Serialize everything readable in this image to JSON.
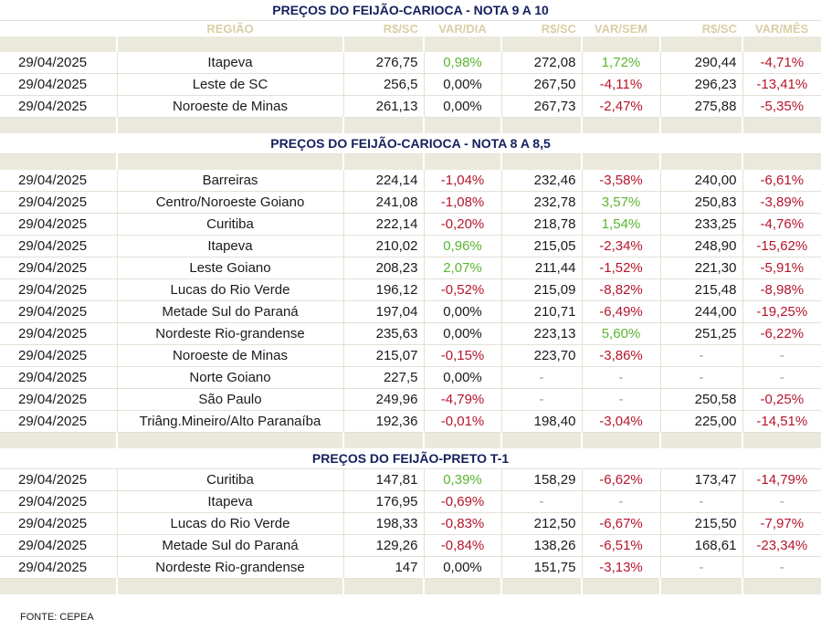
{
  "section1": {
    "title": "PREÇOS DO FEIJÃO-CARIOCA - NOTA 9 A 10",
    "header": [
      "",
      "REGIÃO",
      "R$/SC",
      "VAR/DIA",
      "R$/SC",
      "VAR/SEM",
      "R$/SC",
      "VAR/MÊS"
    ],
    "rows": [
      [
        "29/04/2025",
        "Itapeva",
        "276,75",
        "0,98%",
        "272,08",
        "1,72%",
        "290,44",
        "-4,71%"
      ],
      [
        "29/04/2025",
        "Leste de SC",
        "256,5",
        "0,00%",
        "267,50",
        "-4,11%",
        "296,23",
        "-13,41%"
      ],
      [
        "29/04/2025",
        "Noroeste de Minas",
        "261,13",
        "0,00%",
        "267,73",
        "-2,47%",
        "275,88",
        "-5,35%"
      ]
    ]
  },
  "section2": {
    "title": "PREÇOS DO FEIJÃO-CARIOCA - NOTA 8 A 8,5",
    "rows": [
      [
        "29/04/2025",
        "Barreiras",
        "224,14",
        "-1,04%",
        "232,46",
        "-3,58%",
        "240,00",
        "-6,61%"
      ],
      [
        "29/04/2025",
        "Centro/Noroeste Goiano",
        "241,08",
        "-1,08%",
        "232,78",
        "3,57%",
        "250,83",
        "-3,89%"
      ],
      [
        "29/04/2025",
        "Curitiba",
        "222,14",
        "-0,20%",
        "218,78",
        "1,54%",
        "233,25",
        "-4,76%"
      ],
      [
        "29/04/2025",
        "Itapeva",
        "210,02",
        "0,96%",
        "215,05",
        "-2,34%",
        "248,90",
        "-15,62%"
      ],
      [
        "29/04/2025",
        "Leste Goiano",
        "208,23",
        "2,07%",
        "211,44",
        "-1,52%",
        "221,30",
        "-5,91%"
      ],
      [
        "29/04/2025",
        "Lucas do Rio Verde",
        "196,12",
        "-0,52%",
        "215,09",
        "-8,82%",
        "215,48",
        "-8,98%"
      ],
      [
        "29/04/2025",
        "Metade Sul do Paraná",
        "197,04",
        "0,00%",
        "210,71",
        "-6,49%",
        "244,00",
        "-19,25%"
      ],
      [
        "29/04/2025",
        "Nordeste Rio-grandense",
        "235,63",
        "0,00%",
        "223,13",
        "5,60%",
        "251,25",
        "-6,22%"
      ],
      [
        "29/04/2025",
        "Noroeste de Minas",
        "215,07",
        "-0,15%",
        "223,70",
        "-3,86%",
        "-",
        "-"
      ],
      [
        "29/04/2025",
        "Norte Goiano",
        "227,5",
        "0,00%",
        "-",
        "-",
        "-",
        "-"
      ],
      [
        "29/04/2025",
        "São Paulo",
        "249,96",
        "-4,79%",
        "-",
        "-",
        "250,58",
        "-0,25%"
      ],
      [
        "29/04/2025",
        "Triâng.Mineiro/Alto Paranaíba",
        "192,36",
        "-0,01%",
        "198,40",
        "-3,04%",
        "225,00",
        "-14,51%"
      ]
    ]
  },
  "section3": {
    "title": "PREÇOS DO  FEIJÃO-PRETO  T-1",
    "rows": [
      [
        "29/04/2025",
        "Curitiba",
        "147,81",
        "0,39%",
        "158,29",
        "-6,62%",
        "173,47",
        "-14,79%"
      ],
      [
        "29/04/2025",
        "Itapeva",
        "176,95",
        "-0,69%",
        "-",
        "-",
        "-",
        "-"
      ],
      [
        "29/04/2025",
        "Lucas do Rio Verde",
        "198,33",
        "-0,83%",
        "212,50",
        "-6,67%",
        "215,50",
        "-7,97%"
      ],
      [
        "29/04/2025",
        "Metade Sul do Paraná",
        "129,26",
        "-0,84%",
        "138,26",
        "-6,51%",
        "168,61",
        "-23,34%"
      ],
      [
        "29/04/2025",
        "Nordeste Rio-grandense",
        "147",
        "0,00%",
        "151,75",
        "-3,13%",
        "-",
        "-"
      ]
    ]
  },
  "footer": "FONTE: CEPEA",
  "colors": {
    "title": "#14205e",
    "header": "#d8cfa6",
    "band": "#ebe9dc",
    "positive": "#5cb531",
    "negative": "#b5152b"
  }
}
